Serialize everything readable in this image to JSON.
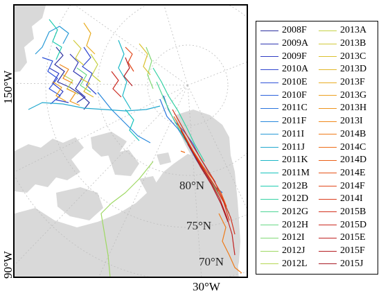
{
  "map": {
    "lon_left_top": "150°W",
    "lon_left_bottom": "90°W",
    "lon_bottom": "30°W",
    "lat_labels": [
      "80°N",
      "75°N",
      "70°N"
    ]
  },
  "legend": {
    "col1": [
      {
        "label": "2008F",
        "color": "#2b2f9e"
      },
      {
        "label": "2009A",
        "color": "#2d35b0"
      },
      {
        "label": "2009F",
        "color": "#2f3cc4"
      },
      {
        "label": "2010A",
        "color": "#2f45d0"
      },
      {
        "label": "2010E",
        "color": "#2e52d8"
      },
      {
        "label": "2010F",
        "color": "#2b62dc"
      },
      {
        "label": "2011C",
        "color": "#2874dd"
      },
      {
        "label": "2011F",
        "color": "#2687dc"
      },
      {
        "label": "2011I",
        "color": "#2699d6"
      },
      {
        "label": "2011J",
        "color": "#22a9cf"
      },
      {
        "label": "2011K",
        "color": "#1bb7c7"
      },
      {
        "label": "2011M",
        "color": "#14c2bc"
      },
      {
        "label": "2012B",
        "color": "#1fcbb0"
      },
      {
        "label": "2012D",
        "color": "#33d1a3"
      },
      {
        "label": "2012G",
        "color": "#4cd595"
      },
      {
        "label": "2012H",
        "color": "#67d886"
      },
      {
        "label": "2012I",
        "color": "#82d975"
      },
      {
        "label": "2012J",
        "color": "#9ed963"
      },
      {
        "label": "2012L",
        "color": "#b4d652"
      }
    ],
    "col2": [
      {
        "label": "2013A",
        "color": "#c4d144"
      },
      {
        "label": "2013B",
        "color": "#d0ca38"
      },
      {
        "label": "2013C",
        "color": "#dac12e"
      },
      {
        "label": "2013D",
        "color": "#e2b727"
      },
      {
        "label": "2013F",
        "color": "#e8ac22"
      },
      {
        "label": "2013G",
        "color": "#eca01e"
      },
      {
        "label": "2013H",
        "color": "#ee941b"
      },
      {
        "label": "2013I",
        "color": "#ef8719"
      },
      {
        "label": "2014B",
        "color": "#ef7a17"
      },
      {
        "label": "2014C",
        "color": "#ed6c16"
      },
      {
        "label": "2014D",
        "color": "#ea5f16"
      },
      {
        "label": "2014E",
        "color": "#e65217"
      },
      {
        "label": "2014F",
        "color": "#e14619"
      },
      {
        "label": "2014I",
        "color": "#db3b1b"
      },
      {
        "label": "2015B",
        "color": "#d3311d"
      },
      {
        "label": "2015D",
        "color": "#ca281f"
      },
      {
        "label": "2015E",
        "color": "#c02121"
      },
      {
        "label": "2015F",
        "color": "#b41c22"
      },
      {
        "label": "2015J",
        "color": "#a81a24"
      }
    ]
  }
}
